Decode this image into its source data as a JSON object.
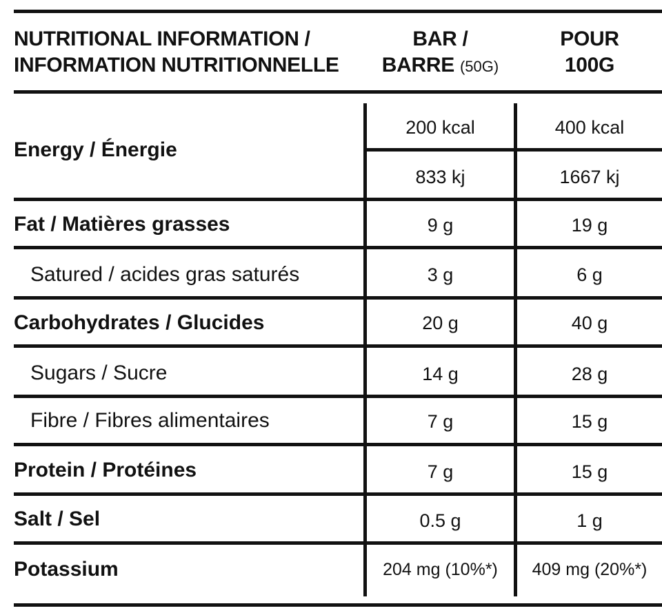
{
  "header": {
    "title_line1": "NUTRITIONAL INFORMATION /",
    "title_line2": "INFORMATION NUTRITIONNELLE",
    "col1_line1": "BAR /",
    "col1_line2": "BARRE",
    "col1_suffix": "(50G)",
    "col2_line1": "POUR",
    "col2_line2": "100G"
  },
  "energy": {
    "label": "Energy / Énergie",
    "kcal_bar": "200 kcal",
    "kcal_100g": "400 kcal",
    "kj_bar": "833 kj",
    "kj_100g": "1667 kj"
  },
  "rows": [
    {
      "label": "Fat / Matières grasses",
      "bar": "9 g",
      "per100": "19 g"
    },
    {
      "label": "Satured / acides gras saturés",
      "bar": "3 g",
      "per100": "6 g"
    },
    {
      "label": "Carbohydrates / Glucides",
      "bar": "20 g",
      "per100": "40 g"
    },
    {
      "label": "Sugars / Sucre",
      "bar": "14 g",
      "per100": "28 g"
    },
    {
      "label": "Fibre / Fibres alimentaires",
      "bar": "7 g",
      "per100": "15 g"
    },
    {
      "label": "Protein / Protéines",
      "bar": "7 g",
      "per100": "15 g"
    },
    {
      "label": "Salt / Sel",
      "bar": "0.5 g",
      "per100": "1 g"
    },
    {
      "label": "Potassium",
      "bar": "204 mg (10%*)",
      "per100": "409 mg (20%*)"
    }
  ]
}
